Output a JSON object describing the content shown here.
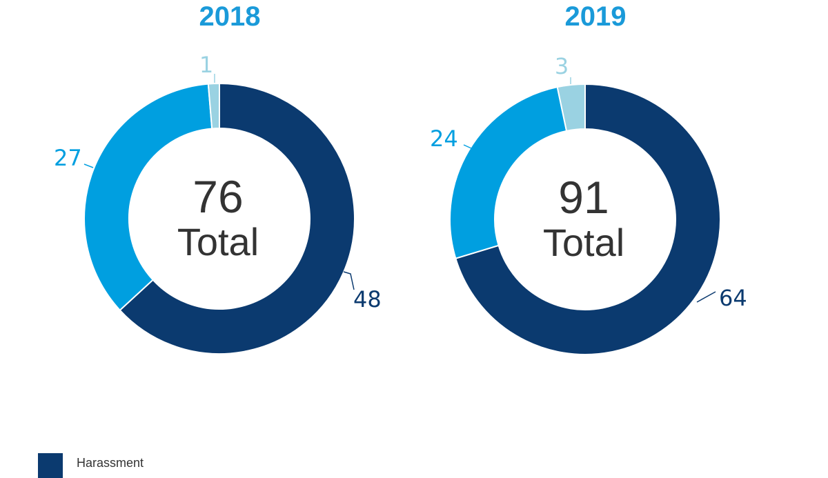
{
  "chart_data": [
    {
      "type": "pie",
      "title": "2018",
      "total": "76",
      "total_label": "Total",
      "series": [
        {
          "name": "Harassment",
          "value": 48,
          "color": "#0b3a6f"
        },
        {
          "name": "",
          "value": 27,
          "color": "#009fe0"
        },
        {
          "name": "",
          "value": 1,
          "color": "#9ad2e2"
        }
      ]
    },
    {
      "type": "pie",
      "title": "2019",
      "total": "91",
      "total_label": "Total",
      "series": [
        {
          "name": "Harassment",
          "value": 64,
          "color": "#0b3a6f"
        },
        {
          "name": "",
          "value": 24,
          "color": "#009fe0"
        },
        {
          "name": "",
          "value": 3,
          "color": "#9ad2e2"
        }
      ]
    }
  ],
  "legend": {
    "items": [
      {
        "label": "Harassment",
        "color": "#0b3a6f"
      }
    ]
  },
  "colors": {
    "title": "#1a9ad9",
    "total_text": "#333333"
  }
}
